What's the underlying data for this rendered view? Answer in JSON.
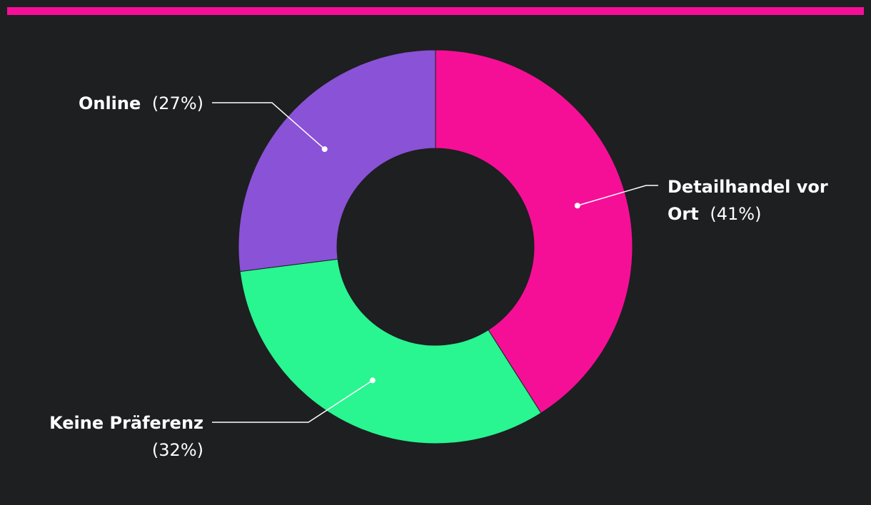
{
  "colors": {
    "background": "#1e1f21",
    "accent_bar": "#f50f97",
    "leader_line": "#ffffff",
    "label_text": "#ffffff"
  },
  "chart_data": {
    "type": "pie",
    "variant": "donut",
    "title": "",
    "slices": [
      {
        "label": "Detailhandel vor Ort",
        "value": 41,
        "percent_label": "(41%)",
        "color": "#f50f97",
        "label_lines": [
          "Detailhandel vor",
          "Ort"
        ]
      },
      {
        "label": "Keine Präferenz",
        "value": 32,
        "percent_label": "(32%)",
        "color": "#29f591",
        "label_lines": [
          "Keine Präferenz",
          ""
        ]
      },
      {
        "label": "Online",
        "value": 27,
        "percent_label": "(27%)",
        "color": "#8a52d6",
        "label_lines": [
          "Online"
        ]
      }
    ],
    "start_angle": "top",
    "direction": "clockwise",
    "legend": "none",
    "labels": "outside with leader lines"
  }
}
